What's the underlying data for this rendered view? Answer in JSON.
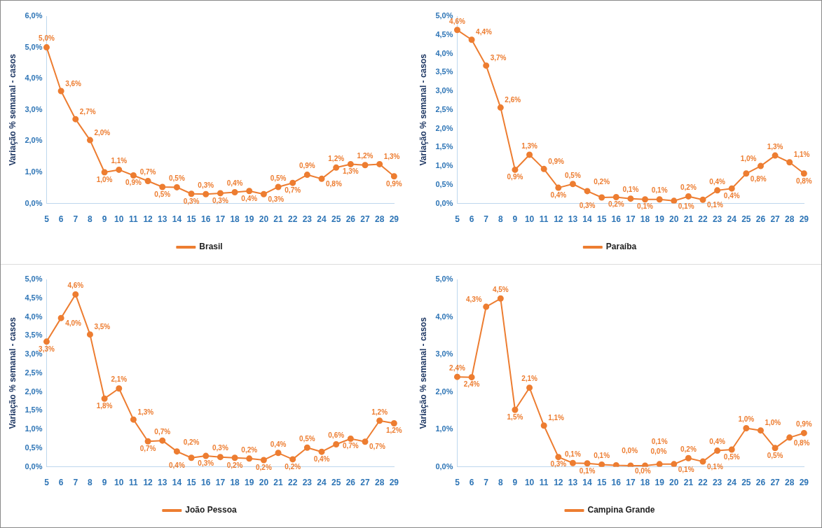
{
  "chart_data": [
    {
      "type": "line",
      "ylabel": "Variação % semanal - casos",
      "categories": [
        "5",
        "6",
        "7",
        "8",
        "9",
        "10",
        "11",
        "12",
        "13",
        "14",
        "15",
        "16",
        "17",
        "18",
        "19",
        "20",
        "21",
        "22",
        "23",
        "24",
        "25",
        "26",
        "27",
        "28",
        "29"
      ],
      "ylim": [
        0,
        6
      ],
      "yticks": [
        {
          "value": 0,
          "label": "0,0%"
        },
        {
          "value": 1,
          "label": "1,0%"
        },
        {
          "value": 2,
          "label": "2,0%"
        },
        {
          "value": 3,
          "label": "3,0%"
        },
        {
          "value": 4,
          "label": "4,0%"
        },
        {
          "value": 5,
          "label": "5,0%"
        },
        {
          "value": 6,
          "label": "6,0%"
        }
      ],
      "legend": "bottom",
      "marker": "circle",
      "grid": false,
      "series": [
        {
          "name": "Brasil",
          "color": "#ed7d31",
          "values": [
            5.0,
            3.6,
            2.7,
            2.03,
            1.0,
            1.08,
            0.9,
            0.72,
            0.53,
            0.52,
            0.31,
            0.3,
            0.33,
            0.36,
            0.4,
            0.3,
            0.53,
            0.66,
            0.92,
            0.79,
            1.15,
            1.26,
            1.23,
            1.26,
            0.87
          ],
          "value_labels": [
            "5,0%",
            "3,6%",
            "2,7%",
            "2,0%",
            "1,0%",
            "1,1%",
            "0,9%",
            "0,7%",
            "0,5%",
            "0,5%",
            "0,3%",
            "0,3%",
            "0,3%",
            "0,4%",
            "0,4%",
            "0,3%",
            "0,5%",
            "0,7%",
            "0,9%",
            "0,8%",
            "1,2%",
            "1,3%",
            "1,2%",
            "1,3%",
            "0,9%"
          ]
        }
      ]
    },
    {
      "type": "line",
      "ylabel": "Variação % semanal - casos",
      "categories": [
        "5",
        "6",
        "7",
        "8",
        "9",
        "10",
        "11",
        "12",
        "13",
        "14",
        "15",
        "16",
        "17",
        "18",
        "19",
        "20",
        "21",
        "22",
        "23",
        "24",
        "25",
        "26",
        "27",
        "28",
        "29"
      ],
      "ylim": [
        0,
        5
      ],
      "yticks": [
        {
          "value": 0,
          "label": "0,0%"
        },
        {
          "value": 0.5,
          "label": "0,5%"
        },
        {
          "value": 1,
          "label": "1,0%"
        },
        {
          "value": 1.5,
          "label": "1,5%"
        },
        {
          "value": 2,
          "label": "2,0%"
        },
        {
          "value": 2.5,
          "label": "2,5%"
        },
        {
          "value": 3,
          "label": "3,0%"
        },
        {
          "value": 3.5,
          "label": "3,5%"
        },
        {
          "value": 4,
          "label": "4,0%"
        },
        {
          "value": 4.5,
          "label": "4,5%"
        },
        {
          "value": 5,
          "label": "5,0%"
        }
      ],
      "legend": "bottom",
      "marker": "circle",
      "grid": false,
      "series": [
        {
          "name": "Paraíba",
          "color": "#ed7d31",
          "values": [
            4.63,
            4.37,
            3.68,
            2.56,
            0.9,
            1.3,
            0.92,
            0.42,
            0.52,
            0.33,
            0.16,
            0.17,
            0.13,
            0.11,
            0.11,
            0.07,
            0.19,
            0.1,
            0.35,
            0.4,
            0.8,
            1.0,
            1.28,
            1.1,
            0.8
          ],
          "value_labels": [
            "4,6%",
            "4,4%",
            "3,7%",
            "2,6%",
            "0,9%",
            "1,3%",
            "0,9%",
            "0,4%",
            "0,5%",
            "0,3%",
            "0,2%",
            "0,2%",
            "0,1%",
            "0,1%",
            "0,1%",
            "0,1%",
            "0,2%",
            "0,1%",
            "0,4%",
            "0,4%",
            "0,8%",
            "1,0%",
            "1,3%",
            "1,1%",
            "0,8%"
          ]
        }
      ]
    },
    {
      "type": "line",
      "ylabel": "Variação % semanal - casos",
      "categories": [
        "5",
        "6",
        "7",
        "8",
        "9",
        "10",
        "11",
        "12",
        "13",
        "14",
        "15",
        "16",
        "17",
        "18",
        "19",
        "20",
        "21",
        "22",
        "23",
        "24",
        "25",
        "26",
        "27",
        "28",
        "29"
      ],
      "ylim": [
        0,
        5
      ],
      "yticks": [
        {
          "value": 0,
          "label": "0,0%"
        },
        {
          "value": 0.5,
          "label": "0,5%"
        },
        {
          "value": 1,
          "label": "1,0%"
        },
        {
          "value": 1.5,
          "label": "1,5%"
        },
        {
          "value": 2,
          "label": "2,0%"
        },
        {
          "value": 2.5,
          "label": "2,5%"
        },
        {
          "value": 3,
          "label": "3,0%"
        },
        {
          "value": 3.5,
          "label": "3,5%"
        },
        {
          "value": 4,
          "label": "4,0%"
        },
        {
          "value": 4.5,
          "label": "4,5%"
        },
        {
          "value": 5,
          "label": "5,0%"
        }
      ],
      "legend": "bottom",
      "marker": "circle",
      "grid": false,
      "series": [
        {
          "name": "João Pessoa",
          "color": "#ed7d31",
          "values": [
            3.34,
            3.97,
            4.6,
            3.53,
            1.82,
            2.09,
            1.26,
            0.68,
            0.7,
            0.41,
            0.24,
            0.29,
            0.26,
            0.24,
            0.22,
            0.18,
            0.37,
            0.2,
            0.51,
            0.4,
            0.6,
            0.75,
            0.67,
            1.23,
            1.16
          ],
          "value_labels": [
            "3,3%",
            "4,0%",
            "4,6%",
            "3,5%",
            "1,8%",
            "2,1%",
            "1,3%",
            "0,7%",
            "0,7%",
            "0,4%",
            "0,2%",
            "0,3%",
            "0,3%",
            "0,2%",
            "0,2%",
            "0,2%",
            "0,4%",
            "0,2%",
            "0,5%",
            "0,4%",
            "0,6%",
            "0,7%",
            "0,7%",
            "1,2%",
            "1,2%"
          ]
        }
      ]
    },
    {
      "type": "line",
      "ylabel": "Variação % semanal - casos",
      "categories": [
        "5",
        "6",
        "7",
        "8",
        "9",
        "10",
        "11",
        "12",
        "13",
        "14",
        "15",
        "16",
        "17",
        "18",
        "19",
        "20",
        "21",
        "22",
        "23",
        "24",
        "25",
        "26",
        "27",
        "28",
        "29"
      ],
      "ylim": [
        0,
        5
      ],
      "yticks": [
        {
          "value": 0,
          "label": "0,0%"
        },
        {
          "value": 1,
          "label": "1,0%"
        },
        {
          "value": 2,
          "label": "2,0%"
        },
        {
          "value": 3,
          "label": "3,0%"
        },
        {
          "value": 4,
          "label": "4,0%"
        },
        {
          "value": 5,
          "label": "5,0%"
        }
      ],
      "legend": "bottom",
      "marker": "circle",
      "grid": false,
      "series": [
        {
          "name": "Campina Grande",
          "color": "#ed7d31",
          "values": [
            2.4,
            2.39,
            4.27,
            4.49,
            1.52,
            2.11,
            1.1,
            0.26,
            0.1,
            0.09,
            0.06,
            0.04,
            0.03,
            0.03,
            0.07,
            0.07,
            0.23,
            0.14,
            0.43,
            0.46,
            1.03,
            0.97,
            0.5,
            0.78,
            0.9
          ],
          "value_labels": [
            "2,4%",
            "2,4%",
            "4,3%",
            "4,5%",
            "1,5%",
            "2,1%",
            "1,1%",
            "0,3%",
            "0,1%",
            "0,1%",
            "0,1%",
            "0,0%",
            "0,0%",
            "0,0%",
            "0,1%",
            "0,1%",
            "0,2%",
            "0,1%",
            "0,4%",
            "0,5%",
            "1,0%",
            "1,0%",
            "0,5%",
            "0,8%",
            "0,9%"
          ]
        }
      ]
    }
  ]
}
